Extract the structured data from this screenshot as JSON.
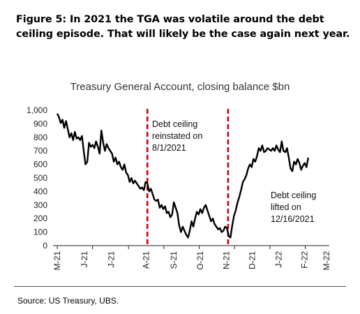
{
  "figure": {
    "heading": "Figure 5: In 2021 the TGA was volatile around the debt ceiling episode. That will likely be the case again next year.",
    "source": "Source: US Treasury, UBS."
  },
  "chart_data": {
    "type": "line",
    "title": "Treasury General Account, closing balance $bn",
    "xlabel": "",
    "ylabel": "",
    "ylim": [
      0,
      1000
    ],
    "yticks": [
      0,
      100,
      200,
      300,
      400,
      500,
      600,
      700,
      800,
      900,
      1000
    ],
    "ytick_labels": [
      "0",
      "100",
      "200",
      "300",
      "400",
      "500",
      "600",
      "700",
      "800",
      "900",
      "1,000"
    ],
    "xlim": [
      "2021-03-01",
      "2022-06-01"
    ],
    "xticks": [
      "2021-03-01",
      "2021-04-30",
      "2021-06-30",
      "2021-08-29",
      "2021-10-28",
      "2021-12-27",
      "2022-02-25",
      "2022-04-26"
    ],
    "xtick_labels": [
      "M-21",
      "J-21",
      "J-21",
      "A-21",
      "S-21",
      "O-21",
      "N-21",
      "D-21",
      "J-22",
      "F-22",
      "M-22"
    ],
    "xtick_label_dates": [
      "2021-03-01",
      "2021-04-16",
      "2021-06-01",
      "2021-07-30",
      "2021-09-15",
      "2021-10-30",
      "2021-12-13",
      "2022-01-26",
      "2022-03-12",
      "2022-04-25",
      "2022-06-01"
    ],
    "grid": false,
    "series": [
      {
        "name": "",
        "color": "#000000",
        "points": [
          [
            "2021-03-01",
            975
          ],
          [
            "2021-03-04",
            950
          ],
          [
            "2021-03-07",
            905
          ],
          [
            "2021-03-10",
            930
          ],
          [
            "2021-03-13",
            870
          ],
          [
            "2021-03-16",
            920
          ],
          [
            "2021-03-19",
            860
          ],
          [
            "2021-03-22",
            800
          ],
          [
            "2021-03-25",
            830
          ],
          [
            "2021-03-28",
            780
          ],
          [
            "2021-03-31",
            840
          ],
          [
            "2021-04-03",
            790
          ],
          [
            "2021-04-06",
            800
          ],
          [
            "2021-04-09",
            780
          ],
          [
            "2021-04-12",
            810
          ],
          [
            "2021-04-15",
            700
          ],
          [
            "2021-04-18",
            600
          ],
          [
            "2021-04-21",
            620
          ],
          [
            "2021-04-24",
            760
          ],
          [
            "2021-04-27",
            730
          ],
          [
            "2021-04-30",
            745
          ],
          [
            "2021-05-03",
            720
          ],
          [
            "2021-05-06",
            770
          ],
          [
            "2021-05-09",
            730
          ],
          [
            "2021-05-12",
            680
          ],
          [
            "2021-05-15",
            850
          ],
          [
            "2021-05-18",
            760
          ],
          [
            "2021-05-21",
            700
          ],
          [
            "2021-05-24",
            750
          ],
          [
            "2021-05-27",
            720
          ],
          [
            "2021-05-30",
            700
          ],
          [
            "2021-06-02",
            680
          ],
          [
            "2021-06-05",
            620
          ],
          [
            "2021-06-08",
            650
          ],
          [
            "2021-06-11",
            600
          ],
          [
            "2021-06-14",
            620
          ],
          [
            "2021-06-17",
            580
          ],
          [
            "2021-06-20",
            560
          ],
          [
            "2021-06-23",
            600
          ],
          [
            "2021-06-26",
            540
          ],
          [
            "2021-06-29",
            520
          ],
          [
            "2021-07-02",
            470
          ],
          [
            "2021-07-05",
            500
          ],
          [
            "2021-07-08",
            460
          ],
          [
            "2021-07-11",
            480
          ],
          [
            "2021-07-14",
            460
          ],
          [
            "2021-07-17",
            440
          ],
          [
            "2021-07-20",
            420
          ],
          [
            "2021-07-23",
            430
          ],
          [
            "2021-07-26",
            410
          ],
          [
            "2021-07-29",
            470
          ],
          [
            "2021-08-01",
            460
          ],
          [
            "2021-08-04",
            400
          ],
          [
            "2021-08-07",
            420
          ],
          [
            "2021-08-10",
            380
          ],
          [
            "2021-08-13",
            340
          ],
          [
            "2021-08-16",
            330
          ],
          [
            "2021-08-19",
            340
          ],
          [
            "2021-08-22",
            280
          ],
          [
            "2021-08-25",
            300
          ],
          [
            "2021-08-28",
            270
          ],
          [
            "2021-08-31",
            290
          ],
          [
            "2021-09-03",
            240
          ],
          [
            "2021-09-06",
            250
          ],
          [
            "2021-09-09",
            210
          ],
          [
            "2021-09-12",
            230
          ],
          [
            "2021-09-15",
            320
          ],
          [
            "2021-09-18",
            280
          ],
          [
            "2021-09-21",
            240
          ],
          [
            "2021-09-24",
            150
          ],
          [
            "2021-09-27",
            100
          ],
          [
            "2021-09-30",
            140
          ],
          [
            "2021-10-03",
            110
          ],
          [
            "2021-10-06",
            80
          ],
          [
            "2021-10-09",
            60
          ],
          [
            "2021-10-12",
            110
          ],
          [
            "2021-10-15",
            180
          ],
          [
            "2021-10-18",
            140
          ],
          [
            "2021-10-21",
            200
          ],
          [
            "2021-10-24",
            250
          ],
          [
            "2021-10-27",
            230
          ],
          [
            "2021-10-30",
            270
          ],
          [
            "2021-11-02",
            240
          ],
          [
            "2021-11-05",
            280
          ],
          [
            "2021-11-08",
            300
          ],
          [
            "2021-11-11",
            260
          ],
          [
            "2021-11-14",
            220
          ],
          [
            "2021-11-17",
            180
          ],
          [
            "2021-11-20",
            200
          ],
          [
            "2021-11-23",
            160
          ],
          [
            "2021-11-26",
            140
          ],
          [
            "2021-11-29",
            120
          ],
          [
            "2021-12-02",
            130
          ],
          [
            "2021-12-05",
            100
          ],
          [
            "2021-12-08",
            110
          ],
          [
            "2021-12-11",
            140
          ],
          [
            "2021-12-14",
            130
          ],
          [
            "2021-12-17",
            70
          ],
          [
            "2021-12-20",
            60
          ],
          [
            "2021-12-23",
            150
          ],
          [
            "2021-12-26",
            220
          ],
          [
            "2021-12-29",
            260
          ],
          [
            "2022-01-01",
            320
          ],
          [
            "2022-01-04",
            360
          ],
          [
            "2022-01-07",
            410
          ],
          [
            "2022-01-10",
            470
          ],
          [
            "2022-01-13",
            490
          ],
          [
            "2022-01-16",
            520
          ],
          [
            "2022-01-19",
            570
          ],
          [
            "2022-01-22",
            600
          ],
          [
            "2022-01-25",
            580
          ],
          [
            "2022-01-28",
            640
          ],
          [
            "2022-01-31",
            620
          ],
          [
            "2022-02-03",
            660
          ],
          [
            "2022-02-06",
            720
          ],
          [
            "2022-02-09",
            700
          ],
          [
            "2022-02-12",
            740
          ],
          [
            "2022-02-15",
            690
          ],
          [
            "2022-02-18",
            700
          ],
          [
            "2022-02-21",
            720
          ],
          [
            "2022-02-24",
            710
          ],
          [
            "2022-02-27",
            700
          ],
          [
            "2022-03-02",
            720
          ],
          [
            "2022-03-05",
            700
          ],
          [
            "2022-03-08",
            740
          ],
          [
            "2022-03-11",
            710
          ],
          [
            "2022-03-14",
            690
          ],
          [
            "2022-03-17",
            770
          ],
          [
            "2022-03-20",
            700
          ],
          [
            "2022-03-23",
            690
          ],
          [
            "2022-03-26",
            720
          ],
          [
            "2022-03-29",
            650
          ],
          [
            "2022-04-01",
            570
          ],
          [
            "2022-04-04",
            550
          ],
          [
            "2022-04-07",
            620
          ],
          [
            "2022-04-10",
            600
          ],
          [
            "2022-04-13",
            640
          ],
          [
            "2022-04-16",
            610
          ],
          [
            "2022-04-19",
            560
          ],
          [
            "2022-04-22",
            590
          ],
          [
            "2022-04-25",
            610
          ],
          [
            "2022-04-28",
            580
          ],
          [
            "2022-05-01",
            650
          ]
        ]
      }
    ],
    "vlines": [
      {
        "date": "2021-08-01",
        "color": "#cc0000",
        "style": "dashed"
      },
      {
        "date": "2021-12-16",
        "color": "#cc0000",
        "style": "dashed"
      }
    ],
    "annotations": [
      {
        "lines": [
          "Debt ceiling",
          "reinstated on",
          "8/1/2021"
        ]
      },
      {
        "lines": [
          "Debt ceiling",
          "lifted on",
          "12/16/2021"
        ]
      }
    ]
  }
}
